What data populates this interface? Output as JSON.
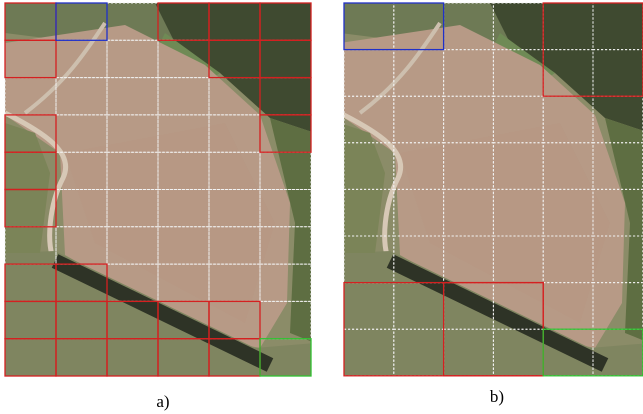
{
  "captions": {
    "a": "a)",
    "b": "b)"
  }
}
